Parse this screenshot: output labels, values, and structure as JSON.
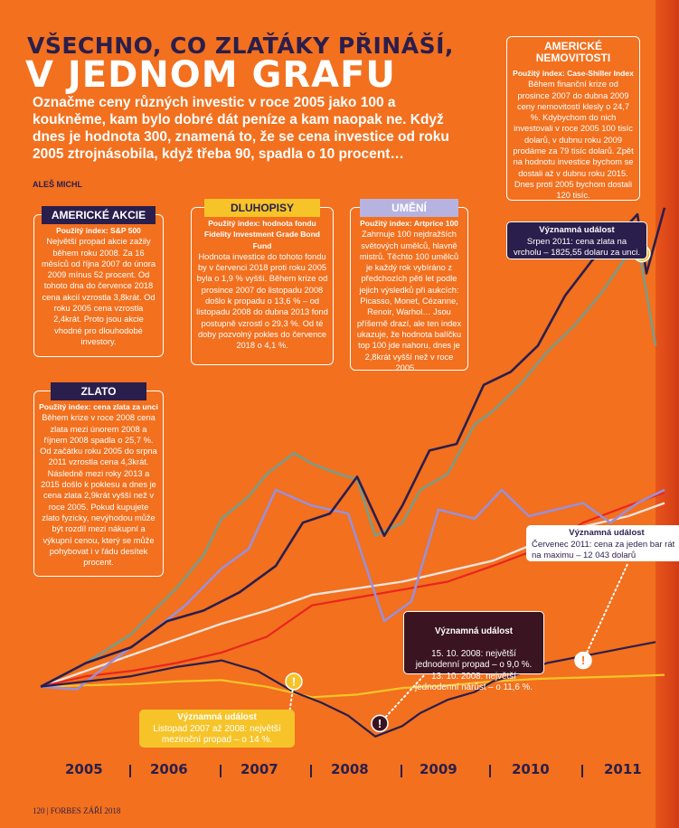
{
  "header": {
    "kicker": "VŠECHNO, CO ZLAŤÁKY PŘINÁŠÍ,",
    "headline": "V JEDNOM GRAFU",
    "lead": "Označme ceny různých investic v roce 2005 jako 100 a koukněme, kam bylo dobré dát peníze a kam naopak ne. Když dnes je hodnota 300, znamená to, že se cena investice od roku 2005 ztrojnásobila, když třeba 90, spadla o 10 procent…",
    "author": "ALEŠ MICHL"
  },
  "boxes": {
    "akcie": {
      "title": "AMERICKÉ AKCIE",
      "index": "Použitý index: S&P 500",
      "text": "Největší propad akcie zažily během roku 2008. Za 16 měsíců od října 2007 do února 2009 mínus 52 procent. Od tohoto dna do července 2018 cena akcií vzrostla 3,8krát. Od roku 2005 cena vzrostla 2,4krát. Proto jsou akcie vhodné pro dlouhodobé investory."
    },
    "dluhopisy": {
      "title": "DLUHOPISY",
      "index": "Použitý index: hodnota fondu Fidelity Investment Grade Bond Fund",
      "text": "Hodnota investice do tohoto fondu by v červenci 2018 proti roku 2005 byla o 1,9 % vyšší. Během krize od prosince 2007 do listopadu 2008 došlo k propadu o 13,6 % – od listopadu 2008 do dubna 2013 fond postupně vzrostl o 29,3 %. Od té doby pozvolný pokles do července 2018 o 4,1 %."
    },
    "umeni": {
      "title": "UMĚNÍ",
      "index": "Použitý index: Artprice 100",
      "text": "Zahrnuje 100 nejdražších světových umělců, hlavně mistrů. Těchto 100 umělců je každý rok vybíráno z předchozích pěti let podle jejich výsledků při aukcích: Picasso, Monet, Cézanne, Renoir, Warhol… Jsou příšerně drazí, ale ten index ukazuje, že hodnota balíčku top 100 jde nahoru, dnes je 2,8krát vyšší než v roce 2005…"
    },
    "zlato": {
      "title": "ZLATO",
      "index": "Použitý index: cena zlata za unci",
      "text": "Během krize v roce 2008 cena zlata mezi únorem 2008 a říjnem 2008 spadla o 25,7 %. Od začátku roku 2005 do srpna 2011 vzrostla cena 4,3krát. Následně mezi roky 2013 a 2015 došlo k poklesu a dnes je cena zlata 2,9krát vyšší než v roce 2005. Pokud kupujete zlato fyzicky, nevýhodou může být rozdíl mezi nákupní a výkupní cenou, který se může pohybovat i v řádu desítek procent."
    },
    "nemovitosti": {
      "title": "AMERICKÉ NEMOVITOSTI",
      "index": "Použitý index: Case-Shiller Index",
      "text": "Během finanční krize od prosince 2007 do dubna 2009 ceny nemovitostí klesly o 24,7 %. Kdybychom do nich investovali v roce 2005 100 tisíc dolarů, v dubnu roku 2009 prodáme za 79 tisíc dolarů. Zpět na hodnotu investice bychom se dostali až v dubnu roku 2015. Dnes proti 2005 bychom dostali 120 tisíc."
    }
  },
  "events": {
    "gold_peak": {
      "title": "Významná událost",
      "text": "Srpen 2011: cena zlata na vrcholu – 1825,55 dolaru za unci."
    },
    "art_peak": {
      "title": "Významná událost",
      "text": "Červenec 2011: cena za jeden bar rát na maximu – 12 043 dolarů"
    },
    "stocks_day": {
      "title": "Významná událost",
      "text": "15. 10. 2008: největší jednodenní propad – o 9,0 %.\n13. 10. 2008: největší jednodenní nárůst – o 11,6 %."
    },
    "bonds_drop": {
      "title": "Významná událost",
      "text": "Listopad 2007 až 2008: největší meziroční propad – o 14 %."
    }
  },
  "event_icon": "!",
  "years": [
    "2005",
    "2006",
    "2007",
    "2008",
    "2009",
    "2010",
    "2011"
  ],
  "folio": "120 | FORBES  ZÁŘÍ 2018",
  "colors": {
    "background": "#f2701e",
    "gold": "#2a1e4c",
    "stocks": "#2a1e4c",
    "art": "#9b8fd6",
    "realestate": "#7a9c88",
    "bonds_red": "#e8261e",
    "light": "#f1e3dd",
    "box_dark": "#2a1e4c",
    "box_gold": "#f6c429",
    "box_lilac": "#b7b3e0",
    "event_dark": "#3a1420"
  },
  "chart_data": {
    "type": "line",
    "ylabel": "",
    "xlabel": "",
    "categories": [
      "2005",
      "2006",
      "2007",
      "2008",
      "2009",
      "2010",
      "2011"
    ],
    "ylim": [
      55,
      520
    ],
    "series": [
      {
        "color": "#2a1e4c",
        "x": [
          2005.0,
          2005.5,
          2006.0,
          2006.4,
          2006.8,
          2007.2,
          2007.6,
          2007.9,
          2008.2,
          2008.5,
          2008.8,
          2009.0,
          2009.3,
          2009.6,
          2009.9,
          2010.2,
          2010.5,
          2010.8,
          2011.1,
          2011.4,
          2011.6,
          2011.7,
          2011.9
        ],
        "y": [
          100,
          118,
          130,
          150,
          158,
          172,
          192,
          225,
          232,
          260,
          215,
          238,
          280,
          285,
          330,
          340,
          360,
          398,
          425,
          445,
          460,
          415,
          465
        ]
      },
      {
        "color": "#7a9c88",
        "x": [
          2005.0,
          2005.5,
          2006.0,
          2006.5,
          2006.8,
          2007.0,
          2007.3,
          2007.5,
          2007.8,
          2008.0,
          2008.3,
          2008.5,
          2008.7,
          2009.0,
          2009.2,
          2009.5,
          2009.8,
          2010.0,
          2010.3,
          2010.6,
          2010.9,
          2011.2,
          2011.4,
          2011.6,
          2011.8
        ],
        "y": [
          100,
          118,
          140,
          175,
          200,
          228,
          245,
          262,
          278,
          270,
          262,
          258,
          215,
          225,
          250,
          262,
          300,
          310,
          330,
          355,
          375,
          400,
          420,
          440,
          360
        ]
      },
      {
        "color": "#9b8fd6",
        "x": [
          2005.0,
          2005.4,
          2005.8,
          2006.2,
          2006.6,
          2007.0,
          2007.3,
          2007.6,
          2008.0,
          2008.4,
          2008.8,
          2009.1,
          2009.4,
          2009.8,
          2010.1,
          2010.4,
          2010.7,
          2011.0,
          2011.3,
          2011.6,
          2011.9
        ],
        "y": [
          100,
          98,
          120,
          140,
          162,
          190,
          205,
          250,
          238,
          232,
          150,
          165,
          235,
          228,
          250,
          230,
          235,
          240,
          225,
          240,
          250
        ]
      },
      {
        "color": "#e8261e",
        "x": [
          2005.0,
          2005.5,
          2006.0,
          2006.5,
          2007.0,
          2007.5,
          2008.0,
          2008.5,
          2009.0,
          2009.5,
          2010.0,
          2010.5,
          2011.0,
          2011.5,
          2011.9
        ],
        "y": [
          100,
          108,
          112,
          118,
          126,
          138,
          162,
          168,
          174,
          180,
          192,
          205,
          225,
          238,
          248
        ]
      },
      {
        "color": "#2a1e4c",
        "x": [
          2005.0,
          2005.5,
          2006.0,
          2006.5,
          2007.0,
          2007.4,
          2007.8,
          2008.1,
          2008.4,
          2008.7,
          2009.0,
          2009.2,
          2009.5,
          2009.8,
          2010.0,
          2010.3,
          2010.6,
          2010.9,
          2011.2,
          2011.5,
          2011.8
        ],
        "y": [
          100,
          104,
          108,
          115,
          120,
          112,
          96,
          88,
          78,
          62,
          70,
          80,
          90,
          96,
          104,
          110,
          118,
          122,
          126,
          130,
          134
        ]
      },
      {
        "color": "#f1e3dd",
        "x": [
          2005.0,
          2005.5,
          2006.0,
          2006.5,
          2007.0,
          2007.5,
          2008.0,
          2008.5,
          2009.0,
          2009.5,
          2010.0,
          2010.5,
          2011.0,
          2011.5,
          2011.9
        ],
        "y": [
          100,
          112,
          124,
          136,
          148,
          158,
          170,
          175,
          180,
          188,
          196,
          210,
          222,
          230,
          240
        ]
      },
      {
        "color": "#f6c429",
        "x": [
          2005.0,
          2005.5,
          2006.0,
          2006.5,
          2007.0,
          2007.5,
          2008.0,
          2008.5,
          2009.0,
          2009.5,
          2010.0,
          2010.5,
          2011.0,
          2011.5,
          2011.9
        ],
        "y": [
          100,
          101,
          102,
          104,
          105,
          100,
          92,
          94,
          99,
          101,
          104,
          106,
          107,
          108,
          109
        ]
      }
    ]
  }
}
